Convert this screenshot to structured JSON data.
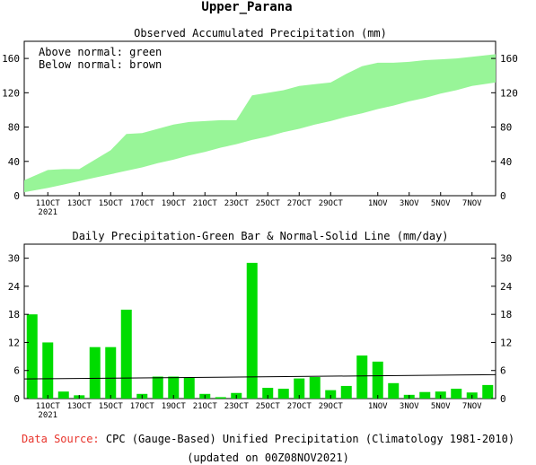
{
  "page_title": "Upper_Parana",
  "footer": {
    "source_prefix": "Data Source:",
    "source_text": "CPC (Gauge-Based) Unified Precipitation (Climatology 1981-2010)",
    "updated": "(updated on 00Z08NOV2021)",
    "source_prefix_color": "#e8342c"
  },
  "colors": {
    "above_normal": "#98f598",
    "daily_bar": "#00dc00",
    "normal_line": "#000000"
  },
  "chart_data": [
    {
      "type": "area",
      "title": "Observed Accumulated Precipitation (mm)",
      "legend_lines": [
        "Above normal: green",
        "Below normal: brown"
      ],
      "legend_position": "top-left",
      "grid": false,
      "xlabel": "",
      "ylabel": "",
      "ylim": [
        0,
        180
      ],
      "yticks": [
        0,
        40,
        80,
        120,
        160
      ],
      "x_tick_days": [
        1,
        3,
        5,
        7,
        9,
        11,
        13,
        15,
        17,
        19,
        22,
        24,
        26,
        28
      ],
      "x_tick_labels": [
        "11OCT",
        "13OCT",
        "15OCT",
        "17OCT",
        "19OCT",
        "21OCT",
        "23OCT",
        "25OCT",
        "27OCT",
        "29OCT",
        "1NOV",
        "3NOV",
        "5NOV",
        "7NOV"
      ],
      "x_sub_label": "2021",
      "series": [
        {
          "name": "Observed",
          "days": [
            0,
            1,
            2,
            3,
            4,
            5,
            6,
            7,
            8,
            9,
            10,
            11,
            12,
            13,
            14,
            15,
            16,
            17,
            18,
            19,
            20,
            21,
            22,
            23,
            24,
            25,
            26,
            27,
            28,
            29
          ],
          "values": [
            18,
            30,
            31,
            31,
            42,
            53,
            72,
            73,
            78,
            83,
            86,
            87,
            88,
            88,
            117,
            120,
            123,
            128,
            130,
            132,
            142,
            151,
            155,
            155,
            156,
            158,
            159,
            160,
            162,
            165
          ]
        },
        {
          "name": "Normal",
          "days": [
            0,
            1,
            2,
            3,
            4,
            5,
            6,
            7,
            8,
            9,
            10,
            11,
            12,
            13,
            14,
            15,
            16,
            17,
            18,
            19,
            20,
            21,
            22,
            23,
            24,
            25,
            26,
            27,
            28,
            29
          ],
          "values": [
            4,
            9,
            13,
            17,
            21,
            25,
            29,
            33,
            38,
            42,
            47,
            51,
            56,
            60,
            65,
            69,
            74,
            78,
            83,
            87,
            92,
            96,
            101,
            105,
            110,
            114,
            119,
            123,
            128,
            132
          ]
        }
      ]
    },
    {
      "type": "bar",
      "title": "Daily Precipitation-Green Bar & Normal-Solid Line (mm/day)",
      "grid": false,
      "xlabel": "",
      "ylabel": "",
      "ylim": [
        0,
        33
      ],
      "yticks": [
        0,
        6,
        12,
        18,
        24,
        30
      ],
      "x_tick_days": [
        1,
        3,
        5,
        7,
        9,
        11,
        13,
        15,
        17,
        19,
        22,
        24,
        26,
        28
      ],
      "x_tick_labels": [
        "11OCT",
        "13OCT",
        "15OCT",
        "17OCT",
        "19OCT",
        "21OCT",
        "23OCT",
        "25OCT",
        "27OCT",
        "29OCT",
        "1NOV",
        "3NOV",
        "5NOV",
        "7NOV"
      ],
      "x_sub_label": "2021",
      "days": [
        0,
        1,
        2,
        3,
        4,
        5,
        6,
        7,
        8,
        9,
        10,
        11,
        12,
        13,
        14,
        15,
        16,
        17,
        18,
        19,
        20,
        21,
        22,
        23,
        24,
        25,
        26,
        27,
        28,
        29
      ],
      "values": [
        18,
        12,
        1.5,
        0.7,
        11,
        11,
        19,
        1,
        4.7,
        4.7,
        4.5,
        1,
        0.3,
        1.2,
        29,
        2.3,
        2.1,
        4.3,
        4.6,
        1.8,
        2.7,
        9.2,
        7.9,
        3.3,
        0.8,
        1.4,
        1.5,
        2.1,
        1.3,
        2.9
      ],
      "series": [
        {
          "name": "Normal",
          "days": [
            0,
            29
          ],
          "values": [
            4.2,
            5.1
          ]
        }
      ]
    }
  ]
}
